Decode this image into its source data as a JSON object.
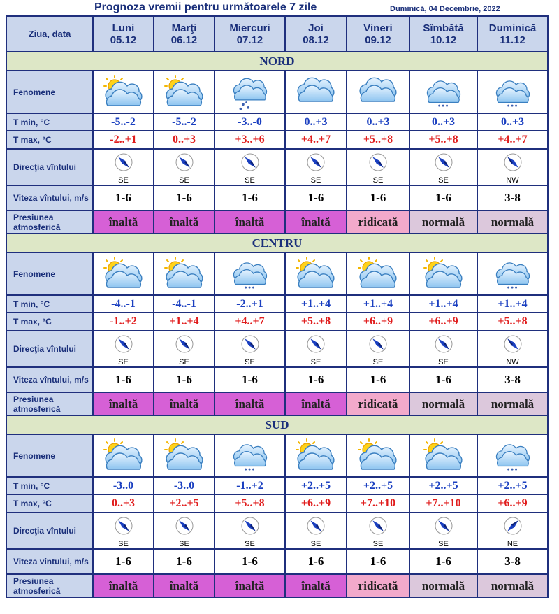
{
  "title": "Prognoza vremii pentru următoarele 7 zile",
  "date": "Duminică, 04 Decembrie, 2022",
  "corner_label": "Ziua, data",
  "days": [
    {
      "name": "Luni",
      "date": "05.12"
    },
    {
      "name": "Marţi",
      "date": "06.12"
    },
    {
      "name": "Miercuri",
      "date": "07.12"
    },
    {
      "name": "Joi",
      "date": "08.12"
    },
    {
      "name": "Vineri",
      "date": "09.12"
    },
    {
      "name": "Sîmbătă",
      "date": "10.12"
    },
    {
      "name": "Duminică",
      "date": "11.12"
    }
  ],
  "row_labels": {
    "fenomene": "Fenomene",
    "tmin": "T min, °C",
    "tmax": "T max, °C",
    "dir": "Direcţia vîntului",
    "speed": "Viteza vîntului, m/s",
    "press": "Presiunea atmosferică"
  },
  "colors": {
    "border": "#1f2f7d",
    "label_bg": "#cad6ec",
    "region_bg": "#dde7c6",
    "tmin": "#1a3fc0",
    "tmax": "#e01c1c",
    "inalta": "#d660d6",
    "ridicata": "#f2a9cb",
    "normala": "#dcc8dc"
  },
  "regions": [
    {
      "name": "NORD",
      "icons": [
        "sun-cloud-icon",
        "sun-cloud-icon",
        "cloud-snow-icon",
        "cloud-icon",
        "cloud-icon",
        "cloud-light-snow-icon",
        "cloud-light-snow-icon"
      ],
      "tmin": [
        "-5..-2",
        "-5..-2",
        "-3..-0",
        "0..+3",
        "0..+3",
        "0..+3",
        "0..+3"
      ],
      "tmax": [
        "-2..+1",
        "0..+3",
        "+3..+6",
        "+4..+7",
        "+5..+8",
        "+5..+8",
        "+4..+7"
      ],
      "dir": [
        "SE",
        "SE",
        "SE",
        "SE",
        "SE",
        "SE",
        "NW"
      ],
      "speed": [
        "1-6",
        "1-6",
        "1-6",
        "1-6",
        "1-6",
        "1-6",
        "3-8"
      ],
      "press": [
        "înaltă",
        "înaltă",
        "înaltă",
        "înaltă",
        "ridicată",
        "normală",
        "normală"
      ]
    },
    {
      "name": "CENTRU",
      "icons": [
        "sun-cloud-icon",
        "sun-cloud-icon",
        "cloud-light-snow-icon",
        "sun-cloud-icon",
        "sun-cloud-icon",
        "sun-cloud-icon",
        "cloud-light-snow-icon"
      ],
      "tmin": [
        "-4..-1",
        "-4..-1",
        "-2..+1",
        "+1..+4",
        "+1..+4",
        "+1..+4",
        "+1..+4"
      ],
      "tmax": [
        "-1..+2",
        "+1..+4",
        "+4..+7",
        "+5..+8",
        "+6..+9",
        "+6..+9",
        "+5..+8"
      ],
      "dir": [
        "SE",
        "SE",
        "SE",
        "SE",
        "SE",
        "SE",
        "NW"
      ],
      "speed": [
        "1-6",
        "1-6",
        "1-6",
        "1-6",
        "1-6",
        "1-6",
        "3-8"
      ],
      "press": [
        "înaltă",
        "înaltă",
        "înaltă",
        "înaltă",
        "ridicată",
        "normală",
        "normală"
      ]
    },
    {
      "name": "SUD",
      "icons": [
        "sun-cloud-icon",
        "sun-cloud-icon",
        "cloud-light-snow-icon",
        "sun-cloud-icon",
        "sun-cloud-icon",
        "sun-cloud-icon",
        "cloud-light-snow-icon"
      ],
      "tmin": [
        "-3..0",
        "-3..0",
        "-1..+2",
        "+2..+5",
        "+2..+5",
        "+2..+5",
        "+2..+5"
      ],
      "tmax": [
        "0..+3",
        "+2..+5",
        "+5..+8",
        "+6..+9",
        "+7..+10",
        "+7..+10",
        "+6..+9"
      ],
      "dir": [
        "SE",
        "SE",
        "SE",
        "SE",
        "SE",
        "SE",
        "NE"
      ],
      "speed": [
        "1-6",
        "1-6",
        "1-6",
        "1-6",
        "1-6",
        "1-6",
        "3-8"
      ],
      "press": [
        "înaltă",
        "înaltă",
        "înaltă",
        "înaltă",
        "ridicată",
        "normală",
        "normală"
      ]
    }
  ]
}
